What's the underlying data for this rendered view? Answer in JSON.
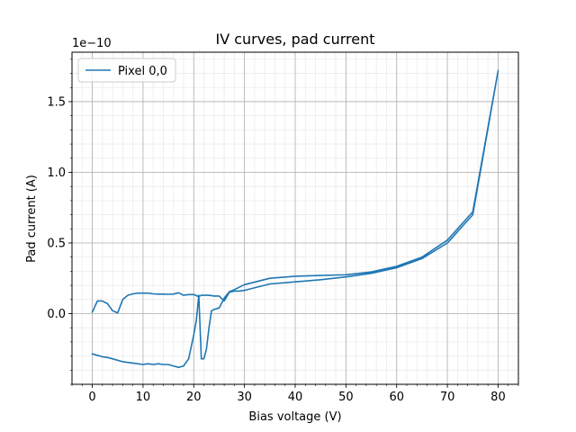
{
  "chart_data": {
    "type": "line",
    "title": "IV curves, pad current",
    "xlabel": "Bias voltage (V)",
    "ylabel": "Pad current (A)",
    "offset_label": "1e−10",
    "y_scale_factor": 1e-10,
    "xlim": [
      -4,
      84
    ],
    "ylim": [
      -0.5,
      1.85
    ],
    "x_ticks": [
      0,
      10,
      20,
      30,
      40,
      50,
      60,
      70,
      80
    ],
    "x_tick_labels": [
      "0",
      "10",
      "20",
      "30",
      "40",
      "50",
      "60",
      "70",
      "80"
    ],
    "y_ticks": [
      0.0,
      0.5,
      1.0,
      1.5
    ],
    "y_tick_labels": [
      "0.0",
      "0.5",
      "1.0",
      "1.5"
    ],
    "x_minor_step": 2,
    "y_minor_step": 0.1,
    "grid": true,
    "minor_grid": true,
    "legend_position": "top-left",
    "colors": {
      "series": "#1f77b4",
      "grid_major": "#b0b0b0",
      "grid_minor": "#ebebeb"
    },
    "series": [
      {
        "name": "Pixel 0,0",
        "x": [
          0,
          1,
          2,
          3,
          4,
          5,
          6,
          7,
          8,
          9,
          10,
          11,
          12,
          13,
          14,
          15,
          16,
          17,
          18,
          19,
          20,
          21,
          21.5,
          22,
          23,
          24,
          25,
          26,
          27,
          28,
          29,
          30,
          35,
          40,
          45,
          50,
          55,
          60,
          65,
          70,
          75,
          80,
          75,
          70,
          65,
          60,
          55,
          50,
          45,
          40,
          35,
          30,
          28,
          27,
          26,
          25,
          24,
          23.5,
          23,
          22.5,
          22,
          21.5,
          21,
          20.5,
          20,
          19,
          18,
          17,
          16,
          15,
          14,
          13,
          12,
          11,
          10,
          9,
          8,
          7,
          6,
          5,
          4,
          3,
          2,
          1,
          0
        ],
        "y": [
          0.01,
          0.09,
          0.09,
          0.07,
          0.02,
          0.005,
          0.1,
          0.13,
          0.14,
          0.145,
          0.145,
          0.145,
          0.14,
          0.138,
          0.138,
          0.137,
          0.138,
          0.148,
          0.13,
          0.135,
          0.135,
          0.12,
          0.13,
          0.13,
          0.13,
          0.125,
          0.125,
          0.09,
          0.15,
          0.16,
          0.16,
          0.165,
          0.21,
          0.225,
          0.24,
          0.26,
          0.285,
          0.325,
          0.39,
          0.5,
          0.7,
          1.72,
          0.72,
          0.52,
          0.4,
          0.335,
          0.295,
          0.275,
          0.27,
          0.265,
          0.25,
          0.205,
          0.17,
          0.155,
          0.11,
          0.04,
          0.03,
          0.02,
          -0.1,
          -0.25,
          -0.32,
          -0.32,
          0.13,
          -0.05,
          -0.15,
          -0.32,
          -0.37,
          -0.38,
          -0.37,
          -0.36,
          -0.36,
          -0.355,
          -0.36,
          -0.355,
          -0.36,
          -0.355,
          -0.35,
          -0.345,
          -0.34,
          -0.33,
          -0.32,
          -0.31,
          -0.305,
          -0.295,
          -0.285
        ]
      }
    ]
  }
}
